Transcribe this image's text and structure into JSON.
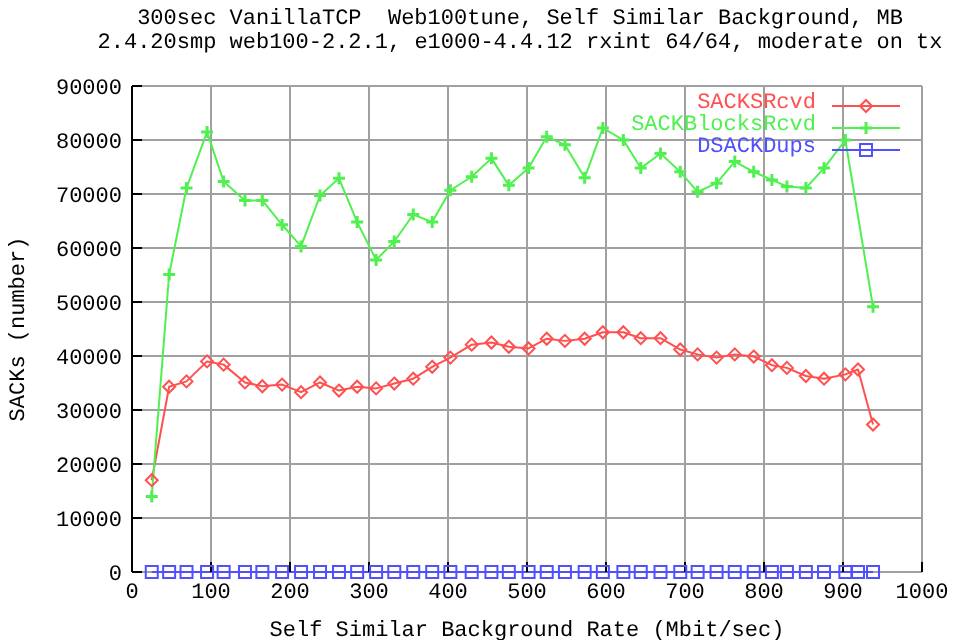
{
  "chart_data": {
    "type": "line",
    "title": "300sec VanillaTCP  Web100tune, Self Similar Background, MB",
    "subtitle": "2.4.20smp web100-2.2.1, e1000-4.4.12 rxint 64/64, moderate on tx",
    "xlabel": "Self Similar Background Rate (Mbit/sec)",
    "ylabel": "SACKs (number)",
    "x": [
      25,
      47,
      69,
      95,
      116,
      143,
      165,
      190,
      214,
      238,
      262,
      285,
      309,
      332,
      356,
      380,
      403,
      430,
      455,
      477,
      502,
      525,
      548,
      573,
      596,
      622,
      644,
      669,
      694,
      716,
      740,
      763,
      787,
      810,
      829,
      853,
      876,
      903,
      919,
      938
    ],
    "series": [
      {
        "name": "SACKSRcvd",
        "color": "#ff5050",
        "marker": "diamond",
        "values": [
          17000,
          34300,
          35300,
          39000,
          38400,
          35100,
          34400,
          34700,
          33300,
          35100,
          33600,
          34300,
          34000,
          34900,
          35800,
          38000,
          39700,
          42100,
          42500,
          41700,
          41400,
          43200,
          42800,
          43200,
          44400,
          44400,
          43300,
          43300,
          41200,
          40300,
          39700,
          40300,
          39900,
          38300,
          37800,
          36300,
          35800,
          36600,
          37500,
          27300
        ]
      },
      {
        "name": "SACKBlocksRcvd",
        "color": "#50f050",
        "marker": "cross",
        "values": [
          14000,
          55100,
          71100,
          81500,
          72300,
          68800,
          68800,
          64300,
          60300,
          69700,
          72900,
          64800,
          57800,
          61200,
          66200,
          64800,
          70700,
          73200,
          76600,
          71600,
          74800,
          80600,
          79100,
          73000,
          82200,
          80000,
          74800,
          77500,
          74100,
          70400,
          72000,
          76000,
          74100,
          72600,
          71400,
          71100,
          74800,
          80000,
          null,
          49100
        ]
      },
      {
        "name": "DSACKDups",
        "color": "#5050ff",
        "marker": "square",
        "values": [
          0,
          0,
          0,
          0,
          0,
          0,
          0,
          0,
          0,
          0,
          0,
          0,
          0,
          0,
          0,
          0,
          0,
          0,
          0,
          0,
          0,
          0,
          0,
          0,
          0,
          0,
          0,
          0,
          0,
          0,
          0,
          0,
          0,
          0,
          0,
          0,
          0,
          0,
          0,
          0
        ]
      }
    ],
    "xlim": [
      0,
      1000
    ],
    "xticks": [
      0,
      100,
      200,
      300,
      400,
      500,
      600,
      700,
      800,
      900,
      1000
    ],
    "ylim": [
      0,
      90000
    ],
    "yticks": [
      0,
      10000,
      20000,
      30000,
      40000,
      50000,
      60000,
      70000,
      80000,
      90000
    ],
    "grid": true,
    "legend": "top right"
  }
}
